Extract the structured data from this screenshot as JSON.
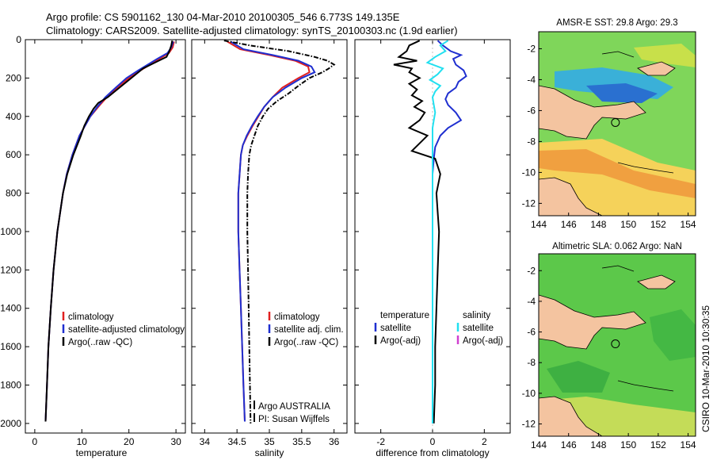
{
  "header": {
    "line1": "Argo profile: CS 5901162_130 04-Mar-2010 20100305_546 6.773S 149.135E",
    "line2": "Climatology: CARS2009. Satellite-adjusted climatology: synTS_20100303.nc (1.9d earlier)"
  },
  "colors": {
    "climatology": "#e02020",
    "satellite": "#1f2fd0",
    "argo": "#000000",
    "satellite_salinity": "#22e0f0",
    "argo_salinity": "#d040d0",
    "land": "#f4c4a0"
  },
  "footer_text": {
    "argo_agency": "Argo AUSTRALIA",
    "pi": "PI: Susan Wijffels",
    "credit": "CSIRO 10-Mar-2010 10:30:35"
  },
  "chart_data": [
    {
      "type": "line",
      "xlabel": "temperature",
      "xlim": [
        -2,
        32
      ],
      "ylim": [
        2050,
        0
      ],
      "xticks": [
        0,
        10,
        20,
        30
      ],
      "yticks": [
        0,
        200,
        400,
        600,
        800,
        1000,
        1200,
        1400,
        1600,
        1800,
        2000
      ],
      "legend": {
        "placement": "lower-right",
        "entries": [
          {
            "label": "climatology",
            "color": "#e02020"
          },
          {
            "label": "satellite-adjusted climatology",
            "color": "#1f2fd0"
          },
          {
            "label": "Argo(..raw -QC)",
            "color": "#000000"
          }
        ]
      },
      "series": [
        {
          "color": "#e02020",
          "style": "solid",
          "depth": [
            10,
            40,
            70,
            100,
            130,
            160,
            200,
            250,
            300,
            350,
            400,
            500,
            600,
            700,
            800,
            1000,
            1200,
            1400,
            1600,
            1800,
            1990
          ],
          "values": [
            29.6,
            29.3,
            28.5,
            26.5,
            24.5,
            22.5,
            20.0,
            17.5,
            15.3,
            13.5,
            11.8,
            9.5,
            8.0,
            6.8,
            6.0,
            4.8,
            4.0,
            3.4,
            2.9,
            2.6,
            2.3
          ]
        },
        {
          "color": "#1f2fd0",
          "style": "solid",
          "depth": [
            10,
            40,
            70,
            100,
            130,
            160,
            200,
            250,
            300,
            350,
            400,
            500,
            600,
            700,
            800,
            1000,
            1200,
            1400,
            1600,
            1800,
            1990
          ],
          "values": [
            29.4,
            29.0,
            28.2,
            26.0,
            24.0,
            22.0,
            19.5,
            17.2,
            15.0,
            13.3,
            11.8,
            9.5,
            8.0,
            6.8,
            6.0,
            4.8,
            4.0,
            3.4,
            2.9,
            2.6,
            2.3
          ]
        },
        {
          "color": "#000000",
          "style": "solid",
          "depth": [
            5,
            30,
            60,
            90,
            120,
            150,
            180,
            210,
            250,
            300,
            330,
            360,
            400,
            450,
            500,
            600,
            700,
            800,
            1000,
            1200,
            1400,
            1600,
            1800,
            1990
          ],
          "values": [
            29.2,
            29.0,
            28.6,
            28.0,
            25.5,
            23.0,
            21.5,
            20.0,
            18.0,
            15.5,
            13.5,
            12.5,
            11.5,
            10.5,
            9.8,
            8.2,
            6.9,
            6.0,
            4.8,
            4.0,
            3.4,
            2.9,
            2.6,
            2.3
          ]
        }
      ]
    },
    {
      "type": "line",
      "xlabel": "salinity",
      "xlim": [
        33.8,
        36.2
      ],
      "ylim": [
        2050,
        0
      ],
      "xticks": [
        34,
        34.5,
        35,
        35.5,
        36
      ],
      "legend": {
        "placement": "lower-right",
        "entries": [
          {
            "label": "climatology",
            "color": "#e02020"
          },
          {
            "label": "satellite adj. clim.",
            "color": "#1f2fd0"
          },
          {
            "label": "Argo(..raw -QC)",
            "color": "#000000"
          }
        ]
      },
      "series": [
        {
          "color": "#e02020",
          "style": "solid",
          "depth": [
            10,
            50,
            80,
            110,
            140,
            170,
            200,
            250,
            300,
            350,
            400,
            450,
            500,
            550,
            600,
            800,
            1000,
            1200,
            1400,
            1600,
            1800,
            1990
          ],
          "values": [
            34.35,
            34.55,
            35.0,
            35.4,
            35.6,
            35.62,
            35.45,
            35.2,
            35.05,
            34.92,
            34.83,
            34.74,
            34.66,
            34.59,
            34.56,
            34.52,
            34.52,
            34.54,
            34.56,
            34.58,
            34.6,
            34.62
          ]
        },
        {
          "color": "#1f2fd0",
          "style": "solid",
          "depth": [
            10,
            50,
            80,
            110,
            140,
            170,
            200,
            250,
            300,
            350,
            400,
            450,
            500,
            550,
            600,
            800,
            1000,
            1200,
            1400,
            1600,
            1800,
            1990
          ],
          "values": [
            34.4,
            34.6,
            35.05,
            35.45,
            35.65,
            35.7,
            35.5,
            35.25,
            35.05,
            34.92,
            34.82,
            34.73,
            34.65,
            34.59,
            34.56,
            34.52,
            34.52,
            34.54,
            34.56,
            34.58,
            34.6,
            34.62
          ]
        },
        {
          "color": "#000000",
          "style": "dashdot",
          "depth": [
            5,
            30,
            60,
            90,
            110,
            130,
            150,
            170,
            200,
            240,
            280,
            320,
            360,
            400,
            450,
            500,
            550,
            600,
            700,
            800,
            1000,
            1200,
            1400,
            1600,
            1800,
            2000
          ],
          "values": [
            34.3,
            34.7,
            35.3,
            35.7,
            35.9,
            36.0,
            35.92,
            35.82,
            35.62,
            35.45,
            35.3,
            35.12,
            34.98,
            34.9,
            34.82,
            34.77,
            34.72,
            34.69,
            34.67,
            34.66,
            34.66,
            34.67,
            34.68,
            34.69,
            34.7,
            34.71
          ]
        }
      ]
    },
    {
      "type": "line",
      "xlabel": "difference from climatology",
      "xlim": [
        -3,
        3
      ],
      "ylim": [
        2050,
        0
      ],
      "xticks": [
        -2,
        0,
        2
      ],
      "legend": {
        "placement": "lower-center",
        "columns": [
          {
            "heading": "temperature",
            "entries": [
              {
                "label": "satellite",
                "color": "#1f2fd0"
              },
              {
                "label": "Argo(-adj)",
                "color": "#000000"
              }
            ]
          },
          {
            "heading": "salinity",
            "entries": [
              {
                "label": "satellite",
                "color": "#22e0f0"
              },
              {
                "label": "Argo(-adj)",
                "color": "#d040d0"
              }
            ]
          }
        ]
      },
      "series": [
        {
          "color": "#1f2fd0",
          "style": "solid",
          "depth": [
            5,
            30,
            60,
            80,
            100,
            130,
            160,
            190,
            220,
            250,
            280,
            310,
            340,
            380,
            420,
            460,
            500,
            560,
            620,
            700,
            800,
            900,
            1000,
            1200,
            1400,
            1600,
            1800,
            2000
          ],
          "values": [
            0.2,
            0.4,
            0.7,
            1.1,
            0.8,
            0.9,
            1.2,
            1.3,
            1.0,
            0.9,
            0.6,
            0.5,
            0.6,
            0.9,
            1.1,
            0.6,
            0.3,
            0.1,
            0.05,
            0.0,
            0.0,
            0.0,
            0.0,
            0.0,
            0.0,
            0.0,
            0.0,
            0.0
          ]
        },
        {
          "color": "#000000",
          "style": "solid",
          "depth": [
            5,
            30,
            60,
            90,
            110,
            130,
            150,
            170,
            200,
            230,
            260,
            290,
            320,
            350,
            380,
            420,
            460,
            500,
            540,
            580,
            620,
            700,
            800,
            900,
            1000,
            1200,
            1400,
            1600,
            1800,
            2000
          ],
          "values": [
            -0.5,
            -0.9,
            -1.0,
            -1.3,
            -0.6,
            -1.5,
            -0.8,
            -0.9,
            -0.5,
            -0.9,
            -0.6,
            -0.8,
            -0.4,
            -0.7,
            -0.3,
            -0.5,
            -0.9,
            -0.2,
            -0.5,
            -0.8,
            0.1,
            0.3,
            0.15,
            0.2,
            0.25,
            0.2,
            0.15,
            0.1,
            0.1,
            0.05
          ]
        },
        {
          "color": "#22e0f0",
          "style": "solid",
          "depth": [
            5,
            30,
            60,
            90,
            120,
            150,
            180,
            210,
            240,
            270,
            300,
            340,
            380,
            420,
            460,
            500,
            600,
            700,
            800,
            1000,
            1200,
            1400,
            1600,
            1800,
            2000
          ],
          "values": [
            0.6,
            0.3,
            0.5,
            0.1,
            -0.2,
            0.4,
            0.2,
            -0.1,
            0.3,
            0.1,
            0.0,
            0.05,
            0.1,
            0.05,
            0.0,
            0.0,
            0.0,
            0.0,
            0.0,
            0.0,
            0.0,
            0.0,
            0.0,
            0.0,
            0.0
          ]
        }
      ]
    },
    {
      "type": "heatmap",
      "title": "AMSR-E SST: 29.8 Argo: 29.3",
      "xlim": [
        144,
        154.5
      ],
      "ylim": [
        -12.8,
        -0.9
      ],
      "xticks": [
        144,
        146,
        148,
        150,
        152,
        154
      ],
      "yticks": [
        -2,
        -4,
        -6,
        -8,
        -10,
        -12
      ],
      "profile_location": {
        "lon": 149.135,
        "lat": -6.773
      }
    },
    {
      "type": "heatmap",
      "title": "Altimetric SLA: 0.062 Argo: NaN",
      "xlim": [
        144,
        154.5
      ],
      "ylim": [
        -12.8,
        -0.9
      ],
      "xticks": [
        144,
        146,
        148,
        150,
        152,
        154
      ],
      "yticks": [
        -2,
        -4,
        -6,
        -8,
        -10,
        -12
      ],
      "profile_location": {
        "lon": 149.135,
        "lat": -6.773
      }
    }
  ]
}
